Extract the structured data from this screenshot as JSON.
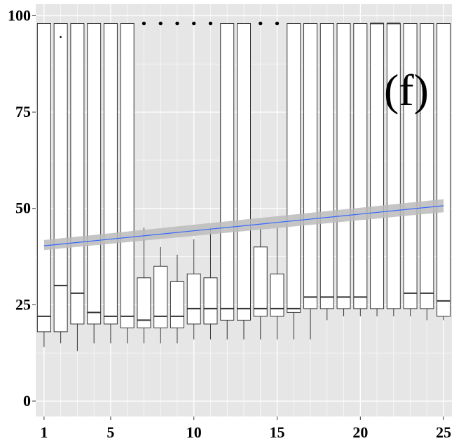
{
  "chart_data": {
    "type": "box",
    "panel_label": "(f)",
    "title": "",
    "xlabel": "",
    "ylabel": "",
    "xlim": [
      0.5,
      25.5
    ],
    "ylim": [
      -4,
      103
    ],
    "x_ticks": [
      1,
      5,
      10,
      15,
      20,
      25
    ],
    "y_ticks": [
      0,
      25,
      50,
      75,
      100
    ],
    "grid": true,
    "legend": "none",
    "boxes": [
      {
        "x": 1,
        "whisker_low": 14,
        "q1": 18,
        "median": 22,
        "q3": 98,
        "whisker_high": 98,
        "outliers": []
      },
      {
        "x": 2,
        "whisker_low": 15,
        "q1": 18,
        "median": 30,
        "q3": 98,
        "whisker_high": 98,
        "outliers": [
          94.5
        ]
      },
      {
        "x": 3,
        "whisker_low": 13,
        "q1": 20,
        "median": 28,
        "q3": 98,
        "whisker_high": 98,
        "outliers": []
      },
      {
        "x": 4,
        "whisker_low": 15,
        "q1": 20,
        "median": 23,
        "q3": 98,
        "whisker_high": 98,
        "outliers": []
      },
      {
        "x": 5,
        "whisker_low": 15,
        "q1": 20,
        "median": 22,
        "q3": 98,
        "whisker_high": 98,
        "outliers": []
      },
      {
        "x": 6,
        "whisker_low": 15,
        "q1": 19,
        "median": 22,
        "q3": 98,
        "whisker_high": 98,
        "outliers": []
      },
      {
        "x": 7,
        "whisker_low": 15,
        "q1": 19,
        "median": 21,
        "q3": 32,
        "whisker_high": 45,
        "outliers": [
          98
        ]
      },
      {
        "x": 8,
        "whisker_low": 15,
        "q1": 19,
        "median": 22,
        "q3": 35,
        "whisker_high": 40,
        "outliers": [
          98
        ]
      },
      {
        "x": 9,
        "whisker_low": 15,
        "q1": 19,
        "median": 22,
        "q3": 31,
        "whisker_high": 38,
        "outliers": [
          98
        ]
      },
      {
        "x": 10,
        "whisker_low": 16,
        "q1": 20,
        "median": 24,
        "q3": 33,
        "whisker_high": 42,
        "outliers": [
          98
        ]
      },
      {
        "x": 11,
        "whisker_low": 16,
        "q1": 20,
        "median": 24,
        "q3": 32,
        "whisker_high": 45,
        "outliers": [
          98
        ]
      },
      {
        "x": 12,
        "whisker_low": 16,
        "q1": 21,
        "median": 24,
        "q3": 98,
        "whisker_high": 98,
        "outliers": []
      },
      {
        "x": 13,
        "whisker_low": 16,
        "q1": 21,
        "median": 24,
        "q3": 98,
        "whisker_high": 98,
        "outliers": []
      },
      {
        "x": 14,
        "whisker_low": 16,
        "q1": 22,
        "median": 24,
        "q3": 40,
        "whisker_high": 45,
        "outliers": [
          98
        ]
      },
      {
        "x": 15,
        "whisker_low": 16,
        "q1": 22,
        "median": 24,
        "q3": 33,
        "whisker_high": 45,
        "outliers": [
          98
        ]
      },
      {
        "x": 16,
        "whisker_low": 16,
        "q1": 23,
        "median": 24,
        "q3": 98,
        "whisker_high": 98,
        "outliers": []
      },
      {
        "x": 17,
        "whisker_low": 16,
        "q1": 24,
        "median": 27,
        "q3": 98,
        "whisker_high": 98,
        "outliers": []
      },
      {
        "x": 18,
        "whisker_low": 21,
        "q1": 24,
        "median": 27,
        "q3": 98,
        "whisker_high": 98,
        "outliers": []
      },
      {
        "x": 19,
        "whisker_low": 22,
        "q1": 24,
        "median": 27,
        "q3": 98,
        "whisker_high": 98,
        "outliers": []
      },
      {
        "x": 20,
        "whisker_low": 22,
        "q1": 24,
        "median": 27,
        "q3": 98,
        "whisker_high": 98,
        "outliers": []
      },
      {
        "x": 21,
        "whisker_low": 22,
        "q1": 24,
        "median": 98,
        "q3": 98,
        "whisker_high": 98,
        "outliers": []
      },
      {
        "x": 22,
        "whisker_low": 22,
        "q1": 24,
        "median": 98,
        "q3": 98,
        "whisker_high": 98,
        "outliers": []
      },
      {
        "x": 23,
        "whisker_low": 22,
        "q1": 24,
        "median": 28,
        "q3": 98,
        "whisker_high": 98,
        "outliers": []
      },
      {
        "x": 24,
        "whisker_low": 21,
        "q1": 24,
        "median": 28,
        "q3": 98,
        "whisker_high": 98,
        "outliers": []
      },
      {
        "x": 25,
        "whisker_low": 21,
        "q1": 22,
        "median": 26,
        "q3": 98,
        "whisker_high": 98,
        "outliers": []
      }
    ],
    "trend_line": {
      "x": [
        1,
        25
      ],
      "y": [
        40.3,
        50.7
      ],
      "ci_lower": [
        39.2,
        49.0
      ],
      "ci_upper": [
        41.8,
        52.4
      ]
    },
    "colors": {
      "panel_background": "#e6e6e6",
      "grid": "#ffffff",
      "box_fill": "#ffffff",
      "box_stroke": "#333333",
      "trend_line": "#3366ff",
      "ci_band": "#bbbbbb"
    }
  }
}
